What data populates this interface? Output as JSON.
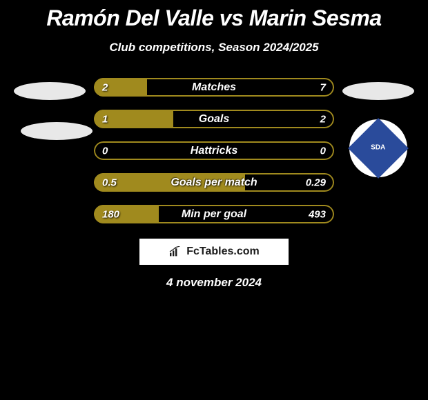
{
  "title": "Ramón Del Valle vs Marin Sesma",
  "subtitle": "Club competitions, Season 2024/2025",
  "date": "4 november 2024",
  "footer": {
    "brand": "FcTables.com"
  },
  "colors": {
    "bar_fill": "#a08a1e",
    "bar_border": "#a08a1e",
    "background": "#000000",
    "text": "#ffffff",
    "ellipse": "#e8e8e8",
    "badge_bg": "#ffffff",
    "badge_diamond": "#2a4b9b"
  },
  "left_player": {
    "badge_text": ""
  },
  "right_player": {
    "badge_text": "SDA"
  },
  "stats": [
    {
      "label": "Matches",
      "left_val": "2",
      "right_val": "7",
      "fill_pct": 22
    },
    {
      "label": "Goals",
      "left_val": "1",
      "right_val": "2",
      "fill_pct": 33
    },
    {
      "label": "Hattricks",
      "left_val": "0",
      "right_val": "0",
      "fill_pct": 0
    },
    {
      "label": "Goals per match",
      "left_val": "0.5",
      "right_val": "0.29",
      "fill_pct": 63
    },
    {
      "label": "Min per goal",
      "left_val": "180",
      "right_val": "493",
      "fill_pct": 27
    }
  ]
}
